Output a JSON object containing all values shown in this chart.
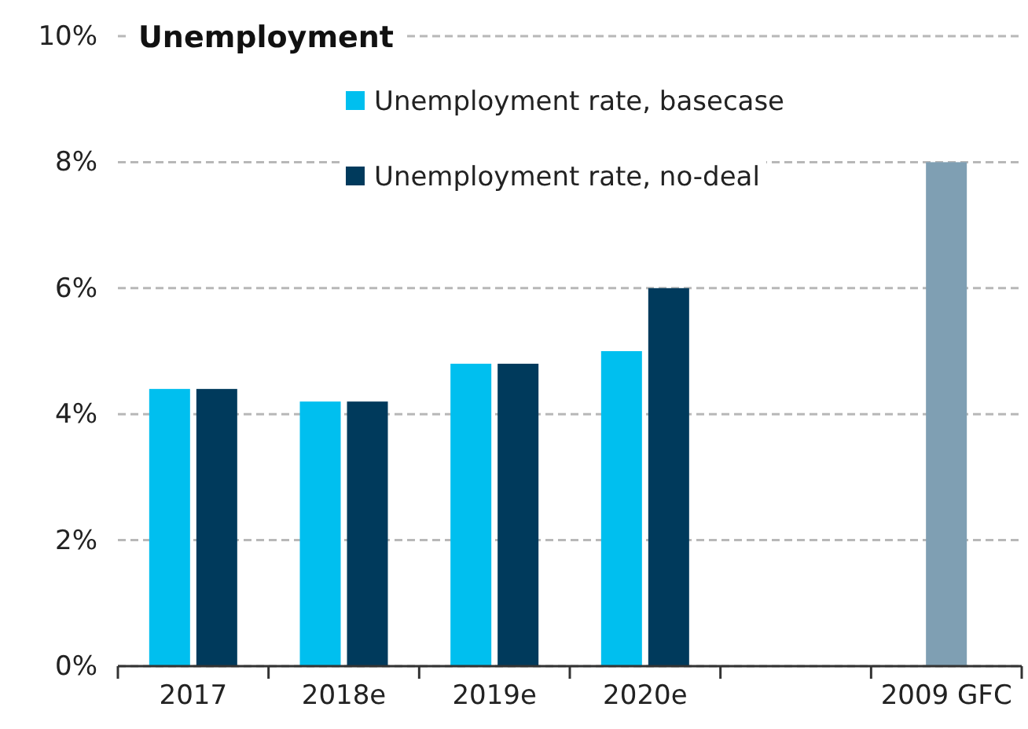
{
  "chart_data": {
    "type": "bar",
    "title": "Unemployment",
    "categories": [
      "2017",
      "2018e",
      "2019e",
      "2020e",
      null,
      "2009 GFC"
    ],
    "series": [
      {
        "name": "Unemployment rate, basecase",
        "color": "#00bfef",
        "values": [
          4.4,
          4.2,
          4.8,
          5.0,
          null,
          null
        ]
      },
      {
        "name": "Unemployment rate, no-deal",
        "color": "#003a5c",
        "values": [
          4.4,
          4.2,
          4.8,
          6.0,
          null,
          null
        ]
      },
      {
        "color": "#7f9fb3",
        "values": [
          null,
          null,
          null,
          null,
          null,
          8.0
        ]
      }
    ],
    "ylim": [
      0,
      10
    ],
    "yticks": [
      {
        "value": 0,
        "label": "0%"
      },
      {
        "value": 2,
        "label": "2%"
      },
      {
        "value": 4,
        "label": "4%"
      },
      {
        "value": 6,
        "label": "6%"
      },
      {
        "value": 8,
        "label": "8%"
      },
      {
        "value": 10,
        "label": "10%"
      }
    ],
    "grid": "y",
    "legend": "top"
  }
}
